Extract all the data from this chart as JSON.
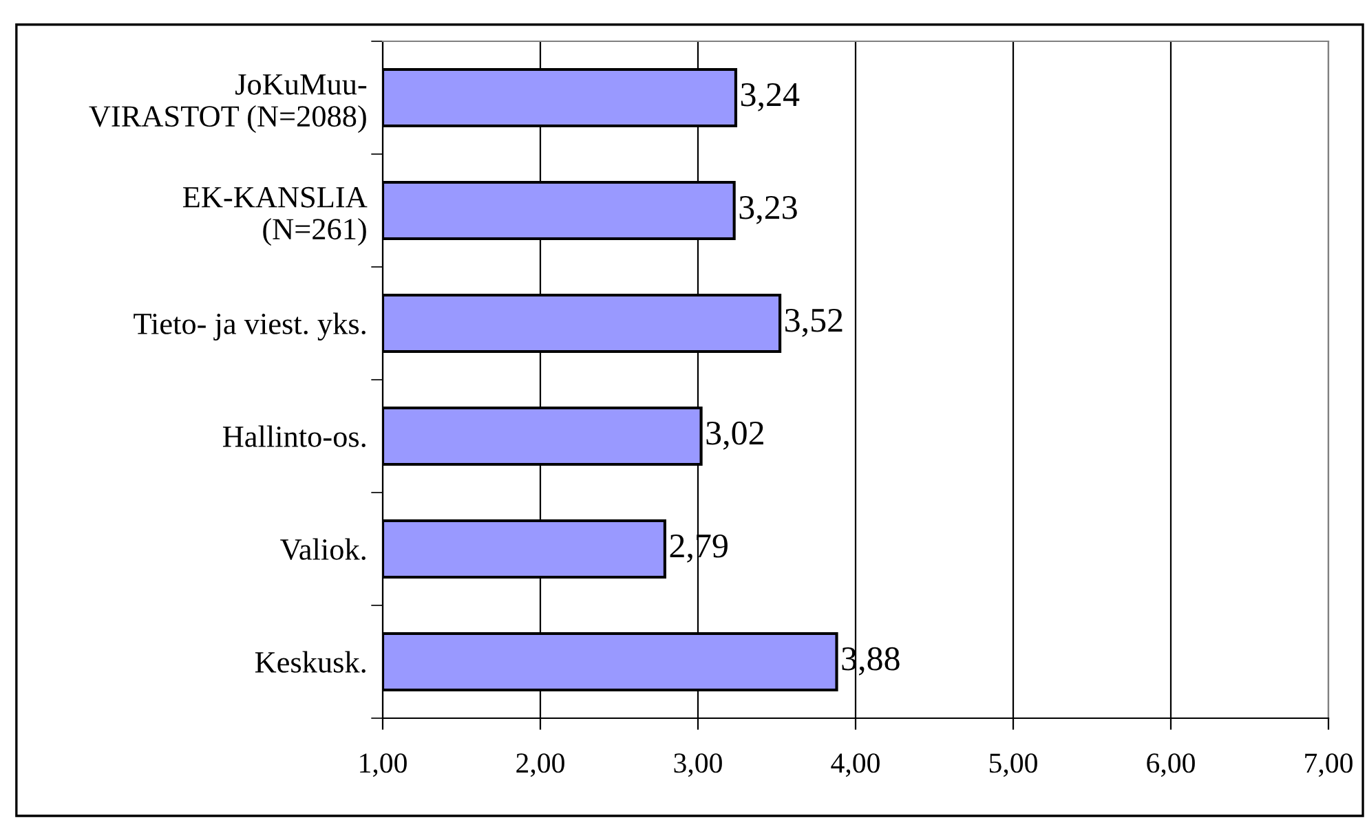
{
  "chart_data": {
    "type": "bar",
    "orientation": "horizontal",
    "categories": [
      "JoKuMuu-\nVIRASTOT (N=2088)",
      "EK-KANSLIA\n(N=261)",
      "Tieto- ja viest. yks.",
      "Hallinto-os.",
      "Valiok.",
      "Keskusk."
    ],
    "values": [
      3.24,
      3.23,
      3.52,
      3.02,
      2.79,
      3.88
    ],
    "color": "#9999ff",
    "value_labels": [
      "3,24",
      "3,23",
      "3,52",
      "3,02",
      "2,79",
      "3,88"
    ],
    "xlim": [
      1,
      7
    ],
    "xticks": [
      {
        "value": 1,
        "label": "1,00"
      },
      {
        "value": 2,
        "label": "2,00"
      },
      {
        "value": 3,
        "label": "3,00"
      },
      {
        "value": 4,
        "label": "4,00"
      },
      {
        "value": 5,
        "label": "5,00"
      },
      {
        "value": 6,
        "label": "6,00"
      },
      {
        "value": 7,
        "label": "7,00"
      }
    ],
    "grid": "x"
  }
}
